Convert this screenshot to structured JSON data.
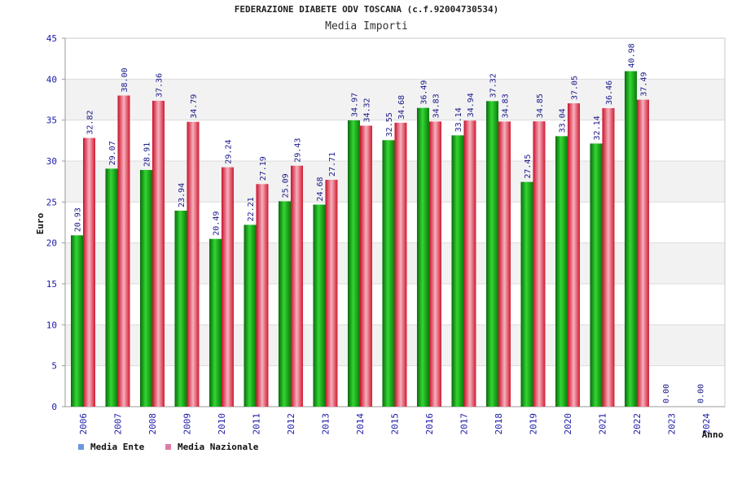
{
  "chart_data": {
    "type": "bar",
    "title": "FEDERAZIONE DIABETE ODV TOSCANA (c.f.92004730534)",
    "subtitle": "Media Importi",
    "xlabel": "Anno",
    "ylabel": "Euro",
    "ylim": [
      0,
      45
    ],
    "yticks": [
      "0",
      "5",
      "10",
      "15",
      "20",
      "25",
      "30",
      "35",
      "40",
      "45"
    ],
    "categories": [
      "2006",
      "2007",
      "2008",
      "2009",
      "2010",
      "2011",
      "2012",
      "2013",
      "2014",
      "2015",
      "2016",
      "2017",
      "2018",
      "2019",
      "2020",
      "2021",
      "2022",
      "2023",
      "2024"
    ],
    "series": [
      {
        "name": "Media Ente",
        "color": "#1aa81a",
        "legend_color": "#6699dd",
        "values": [
          20.93,
          29.07,
          28.91,
          23.94,
          20.49,
          22.21,
          25.09,
          24.68,
          34.97,
          32.55,
          36.49,
          33.14,
          37.32,
          27.45,
          33.04,
          32.14,
          40.98,
          0.0,
          0.0
        ],
        "labels": [
          "20.93",
          "29.07",
          "28.91",
          "23.94",
          "20.49",
          "22.21",
          "25.09",
          "24.68",
          "34.97",
          "32.55",
          "36.49",
          "33.14",
          "37.32",
          "27.45",
          "33.04",
          "32.14",
          "40.98",
          "0.00",
          "0.00"
        ]
      },
      {
        "name": "Media Nazionale",
        "color": "#e83a4a",
        "legend_color": "#e07aa5",
        "values": [
          32.82,
          38.0,
          37.36,
          34.79,
          29.24,
          27.19,
          29.43,
          27.71,
          34.32,
          34.68,
          34.83,
          34.94,
          34.83,
          34.85,
          37.05,
          36.46,
          37.49,
          null,
          null
        ],
        "labels": [
          "32.82",
          "38.00",
          "37.36",
          "34.79",
          "29.24",
          "27.19",
          "29.43",
          "27.71",
          "34.32",
          "34.68",
          "34.83",
          "34.94",
          "34.83",
          "34.85",
          "37.05",
          "36.46",
          "37.49",
          "",
          ""
        ]
      }
    ],
    "grid": true,
    "legend_position": "bottom-left"
  }
}
